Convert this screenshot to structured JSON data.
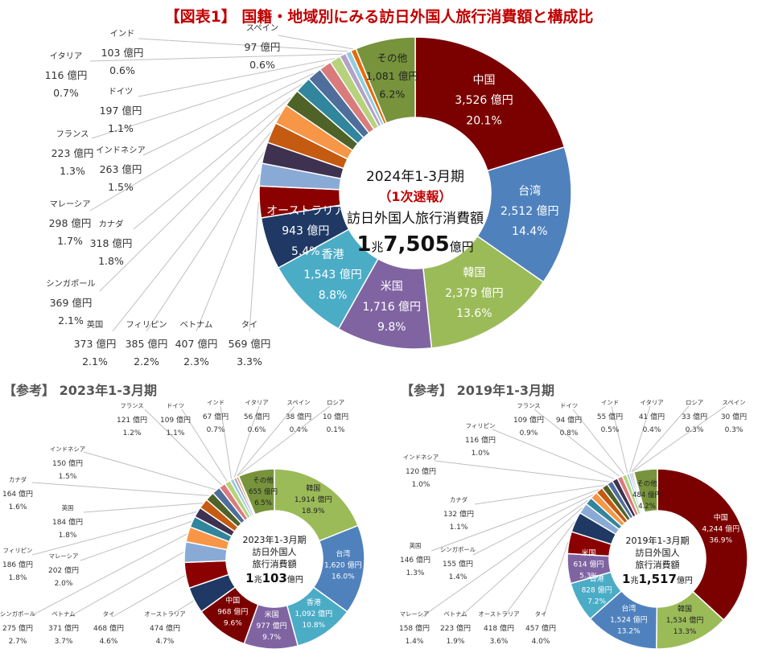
{
  "title": "【図表1】 国籍・地域別にみる訪日外国人旅行消費額と構成比",
  "colors": {
    "title": "#c00000",
    "中国": "#7b0000",
    "台湾": "#4f81bd",
    "韓国": "#9bbb59",
    "米国": "#8064a2",
    "香港": "#4bacc6",
    "オーストラリア": "#1f3864",
    "タイ": "#8b0000",
    "ベトナム": "#8aaad6",
    "フィリピン": "#3f3150",
    "英国": "#c55a11",
    "シンガポール": "#f79646",
    "カナダ": "#4f6228",
    "マレーシア": "#31859c",
    "インドネシア": "#4f6e9b",
    "フランス": "#da7b7b",
    "ドイツ": "#b6d27c",
    "イタリア": "#b3a2c7",
    "インド": "#93cddd",
    "スペイン": "#e46c0a",
    "ロシア": "#17375e",
    "その他": "#77933c"
  },
  "chart_data": [
    {
      "type": "pie",
      "period": "2024年1-3月期",
      "status": "（1次速報）",
      "center_label": "訪日外国人旅行消費額",
      "total_big": "1",
      "total_unit1": "兆",
      "total_big2": "7,505",
      "total_unit2": "億円",
      "slices": [
        {
          "name": "中国",
          "value_text": "3,526 億円",
          "share_text": "20.1%",
          "value": 3526
        },
        {
          "name": "台湾",
          "value_text": "2,512 億円",
          "share_text": "14.4%",
          "value": 2512
        },
        {
          "name": "韓国",
          "value_text": "2,379 億円",
          "share_text": "13.6%",
          "value": 2379
        },
        {
          "name": "米国",
          "value_text": "1,716 億円",
          "share_text": "9.8%",
          "value": 1716
        },
        {
          "name": "香港",
          "value_text": "1,543 億円",
          "share_text": "8.8%",
          "value": 1543
        },
        {
          "name": "オーストラリア",
          "value_text": "943 億円",
          "share_text": "5.4%",
          "value": 943
        },
        {
          "name": "タイ",
          "value_text": "569 億円",
          "share_text": "3.3%",
          "value": 569
        },
        {
          "name": "ベトナム",
          "value_text": "407 億円",
          "share_text": "2.3%",
          "value": 407
        },
        {
          "name": "フィリピン",
          "value_text": "385 億円",
          "share_text": "2.2%",
          "value": 385
        },
        {
          "name": "英国",
          "value_text": "373 億円",
          "share_text": "2.1%",
          "value": 373
        },
        {
          "name": "シンガポール",
          "value_text": "369 億円",
          "share_text": "2.1%",
          "value": 369
        },
        {
          "name": "カナダ",
          "value_text": "318 億円",
          "share_text": "1.8%",
          "value": 318
        },
        {
          "name": "マレーシア",
          "value_text": "298 億円",
          "share_text": "1.7%",
          "value": 298
        },
        {
          "name": "インドネシア",
          "value_text": "263 億円",
          "share_text": "1.5%",
          "value": 263
        },
        {
          "name": "フランス",
          "value_text": "223 億円",
          "share_text": "1.3%",
          "value": 223
        },
        {
          "name": "ドイツ",
          "value_text": "197 億円",
          "share_text": "1.1%",
          "value": 197
        },
        {
          "name": "イタリア",
          "value_text": "116 億円",
          "share_text": "0.7%",
          "value": 116
        },
        {
          "name": "インド",
          "value_text": "103 億円",
          "share_text": "0.6%",
          "value": 103
        },
        {
          "name": "スペイン",
          "value_text": "97 億円",
          "share_text": "0.6%",
          "value": 97
        },
        {
          "name": "その他",
          "value_text": "1,081 億円",
          "share_text": "6.2%",
          "value": 1081
        }
      ]
    },
    {
      "type": "pie",
      "section_title": "【参考】 2023年1-3月期",
      "period": "2023年1-3月期",
      "center_label": "訪日外国人",
      "center_label2": "旅行消費額",
      "total_big": "1",
      "total_unit1": "兆",
      "total_big2": "103",
      "total_unit2": "億円",
      "slices": [
        {
          "name": "韓国",
          "value_text": "1,914 億円",
          "share_text": "18.9%",
          "value": 1914
        },
        {
          "name": "台湾",
          "value_text": "1,620 億円",
          "share_text": "16.0%",
          "value": 1620
        },
        {
          "name": "香港",
          "value_text": "1,092 億円",
          "share_text": "10.8%",
          "value": 1092
        },
        {
          "name": "米国",
          "value_text": "977 億円",
          "share_text": "9.7%",
          "value": 977
        },
        {
          "name": "中国",
          "value_text": "968 億円",
          "share_text": "9.6%",
          "value": 968
        },
        {
          "name": "オーストラリア",
          "value_text": "474 億円",
          "share_text": "4.7%",
          "value": 474
        },
        {
          "name": "タイ",
          "value_text": "468 億円",
          "share_text": "4.6%",
          "value": 468
        },
        {
          "name": "ベトナム",
          "value_text": "371 億円",
          "share_text": "3.7%",
          "value": 371
        },
        {
          "name": "シンガポール",
          "value_text": "275 億円",
          "share_text": "2.7%",
          "value": 275
        },
        {
          "name": "マレーシア",
          "value_text": "202 億円",
          "share_text": "2.0%",
          "value": 202
        },
        {
          "name": "フィリピン",
          "value_text": "186 億円",
          "share_text": "1.8%",
          "value": 186
        },
        {
          "name": "英国",
          "value_text": "184 億円",
          "share_text": "1.8%",
          "value": 184
        },
        {
          "name": "カナダ",
          "value_text": "164 億円",
          "share_text": "1.6%",
          "value": 164
        },
        {
          "name": "インドネシア",
          "value_text": "150 億円",
          "share_text": "1.5%",
          "value": 150
        },
        {
          "name": "フランス",
          "value_text": "121 億円",
          "share_text": "1.2%",
          "value": 121
        },
        {
          "name": "ドイツ",
          "value_text": "109 億円",
          "share_text": "1.1%",
          "value": 109
        },
        {
          "name": "インド",
          "value_text": "67 億円",
          "share_text": "0.7%",
          "value": 67
        },
        {
          "name": "イタリア",
          "value_text": "56 億円",
          "share_text": "0.6%",
          "value": 56
        },
        {
          "name": "スペイン",
          "value_text": "38 億円",
          "share_text": "0.4%",
          "value": 38
        },
        {
          "name": "ロシア",
          "value_text": "10 億円",
          "share_text": "0.1%",
          "value": 10
        },
        {
          "name": "その他",
          "value_text": "655 億円",
          "share_text": "6.5%",
          "value": 655
        }
      ]
    },
    {
      "type": "pie",
      "section_title": "【参考】 2019年1-3月期",
      "period": "2019年1-3月期",
      "center_label": "訪日外国人",
      "center_label2": "旅行消費額",
      "total_big": "1",
      "total_unit1": "兆",
      "total_big2": "1,517",
      "total_unit2": "億円",
      "slices": [
        {
          "name": "中国",
          "value_text": "4,244 億円",
          "share_text": "36.9%",
          "value": 4244
        },
        {
          "name": "韓国",
          "value_text": "1,534 億円",
          "share_text": "13.3%",
          "value": 1534
        },
        {
          "name": "台湾",
          "value_text": "1,524 億円",
          "share_text": "13.2%",
          "value": 1524
        },
        {
          "name": "香港",
          "value_text": "828 億円",
          "share_text": "7.2%",
          "value": 828
        },
        {
          "name": "米国",
          "value_text": "614 億円",
          "share_text": "5.3%",
          "value": 614
        },
        {
          "name": "タイ",
          "value_text": "457 億円",
          "share_text": "4.0%",
          "value": 457
        },
        {
          "name": "オーストラリア",
          "value_text": "418 億円",
          "share_text": "3.6%",
          "value": 418
        },
        {
          "name": "ベトナム",
          "value_text": "223 億円",
          "share_text": "1.9%",
          "value": 223
        },
        {
          "name": "マレーシア",
          "value_text": "158 億円",
          "share_text": "1.4%",
          "value": 158
        },
        {
          "name": "シンガポール",
          "value_text": "155 億円",
          "share_text": "1.4%",
          "value": 155
        },
        {
          "name": "英国",
          "value_text": "146 億円",
          "share_text": "1.3%",
          "value": 146
        },
        {
          "name": "カナダ",
          "value_text": "132 億円",
          "share_text": "1.1%",
          "value": 132
        },
        {
          "name": "インドネシア",
          "value_text": "120 億円",
          "share_text": "1.0%",
          "value": 120
        },
        {
          "name": "フィリピン",
          "value_text": "116 億円",
          "share_text": "1.0%",
          "value": 116
        },
        {
          "name": "フランス",
          "value_text": "109 億円",
          "share_text": "0.9%",
          "value": 109
        },
        {
          "name": "ドイツ",
          "value_text": "94 億円",
          "share_text": "0.8%",
          "value": 94
        },
        {
          "name": "インド",
          "value_text": "55 億円",
          "share_text": "0.5%",
          "value": 55
        },
        {
          "name": "イタリア",
          "value_text": "41 億円",
          "share_text": "0.4%",
          "value": 41
        },
        {
          "name": "ロシア",
          "value_text": "33 億円",
          "share_text": "0.3%",
          "value": 33
        },
        {
          "name": "スペイン",
          "value_text": "30 億円",
          "share_text": "0.3%",
          "value": 30
        },
        {
          "name": "その他",
          "value_text": "484 億円",
          "share_text": "4.2%",
          "value": 484
        }
      ]
    }
  ]
}
